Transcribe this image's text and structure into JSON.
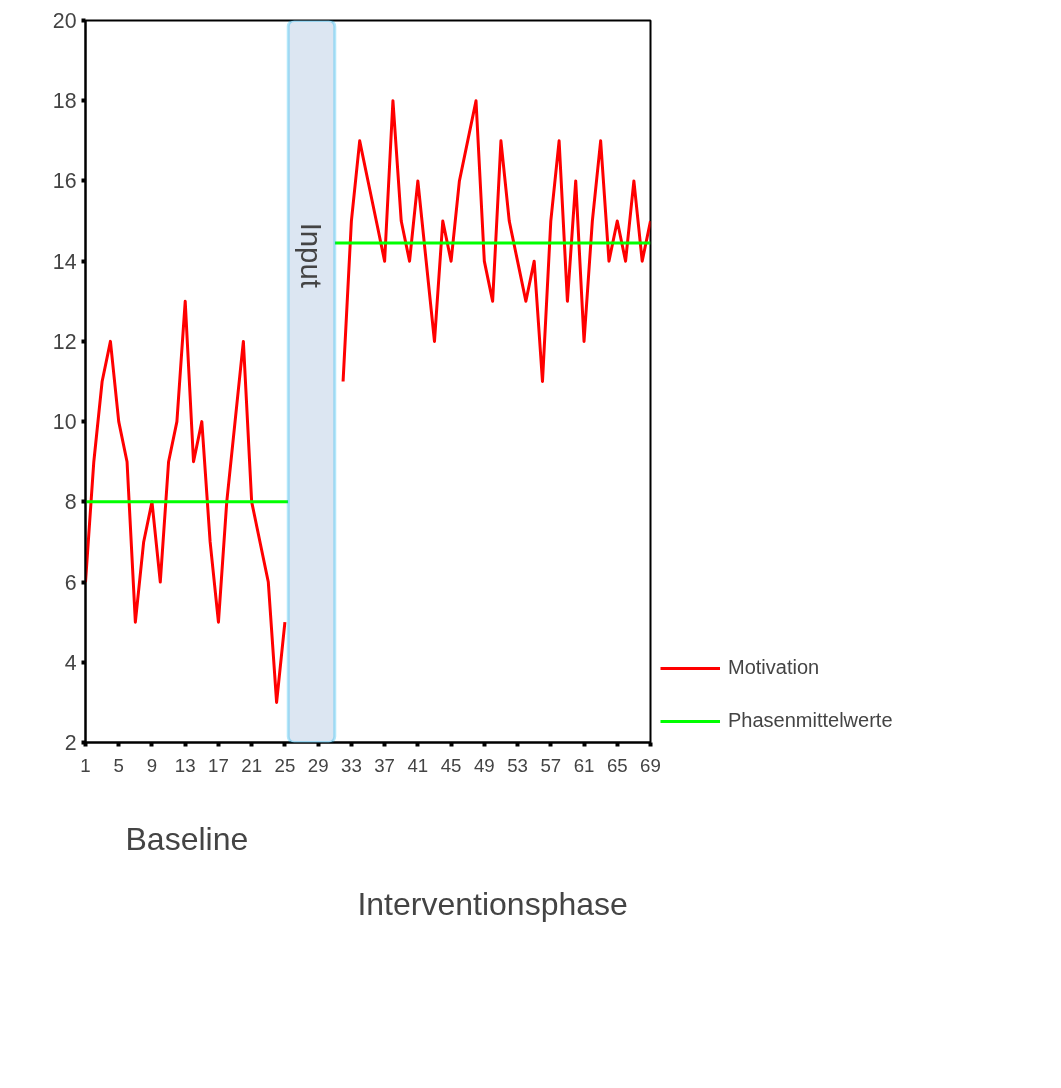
{
  "chart_data": {
    "type": "line",
    "x": [
      1,
      2,
      3,
      4,
      5,
      6,
      7,
      8,
      9,
      10,
      11,
      12,
      13,
      14,
      15,
      16,
      17,
      18,
      19,
      20,
      21,
      22,
      23,
      24,
      25,
      26,
      27,
      28,
      29,
      30,
      31,
      32,
      33,
      34,
      35,
      36,
      37,
      38,
      39,
      40,
      41,
      42,
      43,
      44,
      45,
      46,
      47,
      48,
      49,
      50,
      51,
      52,
      53,
      54,
      55,
      56,
      57,
      58,
      59,
      60,
      61,
      62,
      63,
      64,
      65,
      66,
      67,
      68,
      69
    ],
    "series": [
      {
        "name": "Motivation",
        "color": "#ff0000",
        "values": [
          6,
          9,
          11,
          12,
          10,
          9,
          5,
          7,
          8,
          6,
          9,
          10,
          13,
          9,
          10,
          7,
          5,
          8,
          10,
          12,
          8,
          7,
          6,
          3,
          5,
          null,
          null,
          null,
          null,
          null,
          null,
          11,
          15,
          17,
          16,
          15,
          14,
          18,
          15,
          14,
          16,
          14,
          12,
          15,
          14,
          16,
          17,
          18,
          14,
          13,
          17,
          15,
          14,
          13,
          14,
          11,
          15,
          17,
          13,
          16,
          12,
          15,
          17,
          14,
          15,
          14,
          16,
          14,
          15
        ]
      },
      {
        "name": "Phasenmittelwerte",
        "color": "#00ff00",
        "x": [
          1,
          25.4,
          28,
          31,
          69
        ],
        "values": [
          8,
          8,
          null,
          14.45,
          14.45
        ]
      }
    ],
    "xlim": [
      1,
      69
    ],
    "xticks": [
      1,
      5,
      9,
      13,
      17,
      21,
      25,
      29,
      33,
      37,
      41,
      45,
      49,
      53,
      57,
      61,
      65,
      69
    ],
    "ylim": [
      2,
      20
    ],
    "yticks": [
      2,
      4,
      6,
      8,
      10,
      12,
      14,
      16,
      18,
      20
    ],
    "bands": [
      {
        "axis": "x",
        "from": 25.4,
        "to": 31.0,
        "label": "Input",
        "color": "#dce6f2"
      }
    ],
    "annotations": [
      "Baseline",
      "Interventionsphase"
    ],
    "legend": "right",
    "grid": false,
    "line_style": "solid",
    "marker": "none"
  }
}
